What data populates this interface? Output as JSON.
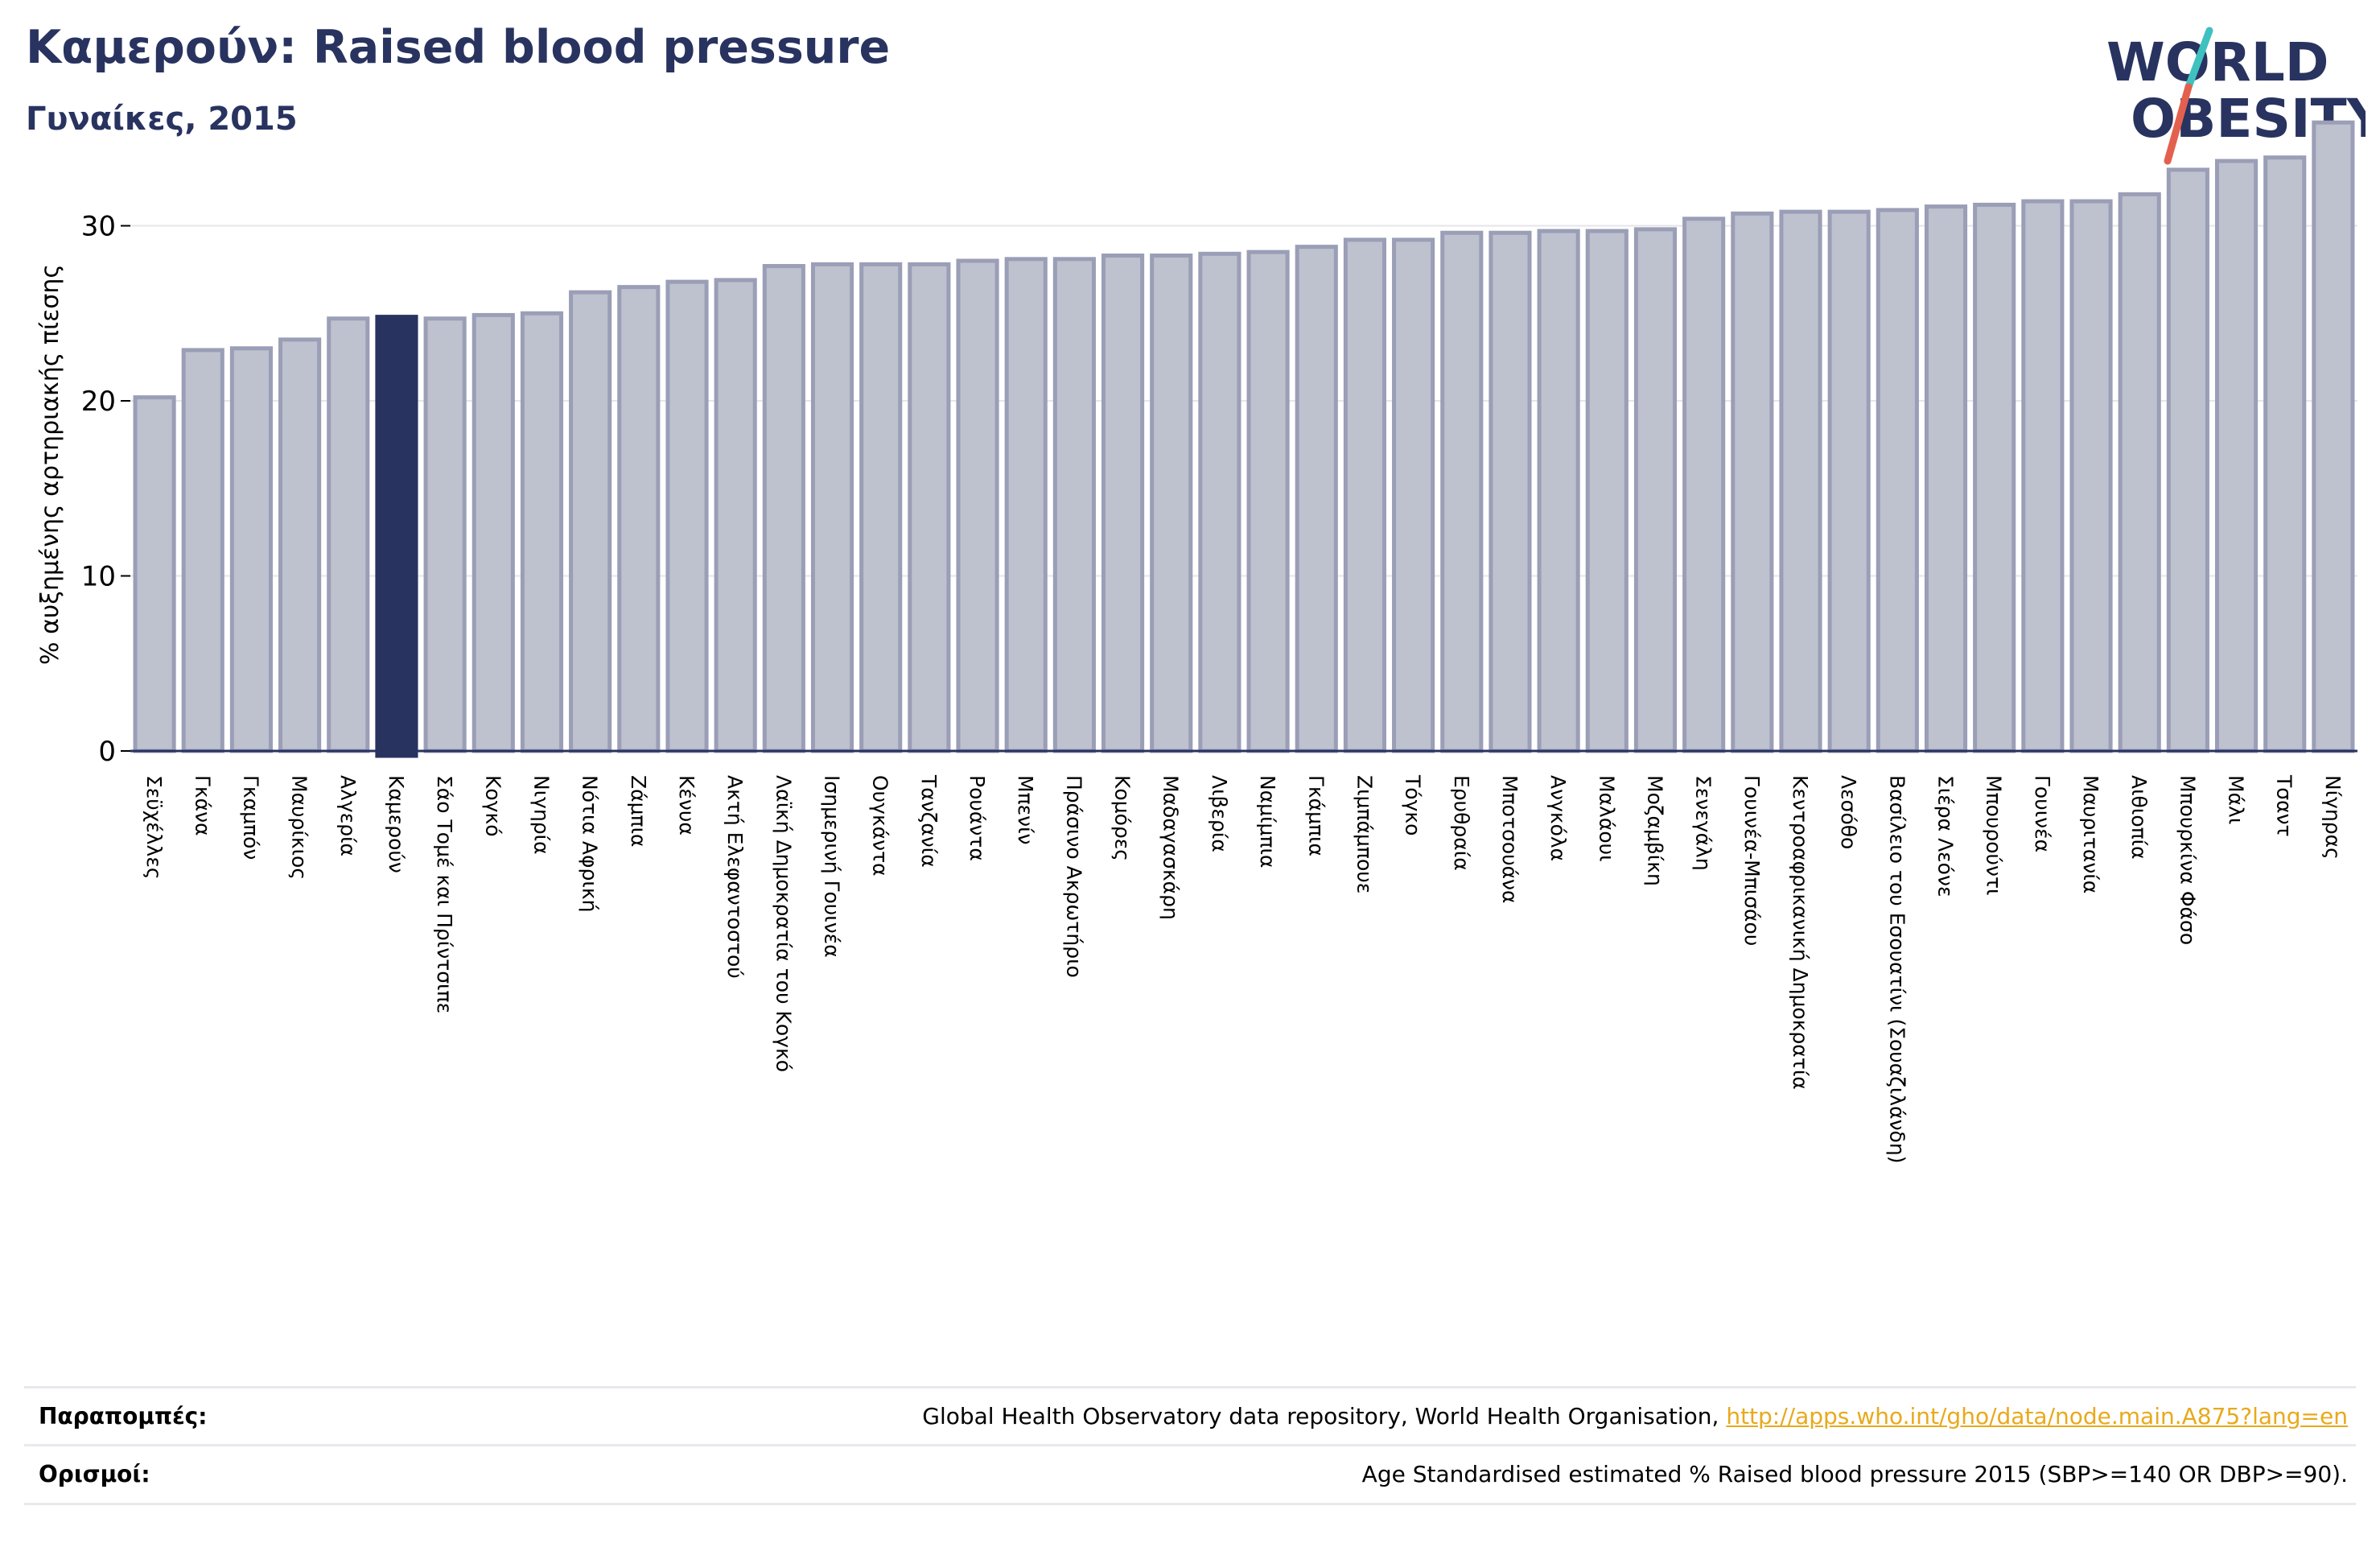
{
  "header": {
    "title": "Καμερούν: Raised blood pressure",
    "subtitle": "Γυναίκες, 2015"
  },
  "logo": {
    "line1": "WORLD",
    "line2": "OBESITY"
  },
  "colors": {
    "bar_fill": "#bec1ce",
    "bar_stroke": "#9a9eb6",
    "highlight_fill": "#283360",
    "text": "#283360",
    "grid": "#e6e6ea",
    "axis": "#283360",
    "link": "#e8a91c",
    "logo_teal": "#3fc1c0",
    "logo_red": "#e4604e"
  },
  "chart_data": {
    "type": "bar",
    "ylabel": "% αυξημένης αρτηριακής πίεσης",
    "ylim": [
      0,
      36
    ],
    "yticks": [
      0,
      10,
      20,
      30
    ],
    "grid": true,
    "highlight": "Καμερούν",
    "categories": [
      "Σεϋχέλλες",
      "Γκάνα",
      "Γκαμπόν",
      "Μαυρίκιος",
      "Αλγερία",
      "Καμερούν",
      "Σάο Τομέ και Πρίντσιπε",
      "Κογκό",
      "Νιγηρία",
      "Νότια Αφρική",
      "Ζάμπια",
      "Κένυα",
      "Ακτή Ελεφαντοστού",
      "Λαϊκή Δημοκρατία του Κογκό",
      "Ισημερινή Γουινέα",
      "Ουγκάντα",
      "Τανζανία",
      "Ρουάντα",
      "Μπενίν",
      "Πράσινο Ακρωτήριο",
      "Κομόρες",
      "Μαδαγασκάρη",
      "Λιβερία",
      "Ναμίμπια",
      "Γκάμπια",
      "Ζιμπάμπουε",
      "Τόγκο",
      "Ερυθραία",
      "Μποτσουάνα",
      "Ανγκόλα",
      "Μαλάουι",
      "Μοζαμβίκη",
      "Σενεγάλη",
      "Γουινέα-Μπισάου",
      "Κεντροαφρικανική Δημοκρατία",
      "Λεσόθο",
      "Βασίλειο του Εσουατίνι (Σουαζιλάνδη)",
      "Σιέρα Λεόνε",
      "Μπουρούντι",
      "Γουινέα",
      "Μαυριτανία",
      "Αιθιοπία",
      "Μπουρκίνα Φάσο",
      "Μάλι",
      "Τσαντ",
      "Νίγηρας"
    ],
    "values": [
      20.2,
      22.9,
      23.0,
      23.5,
      24.7,
      24.8,
      24.7,
      24.9,
      25.0,
      26.2,
      26.5,
      26.8,
      26.9,
      27.7,
      27.8,
      27.8,
      27.8,
      28.0,
      28.1,
      28.1,
      28.3,
      28.3,
      28.4,
      28.5,
      28.8,
      29.2,
      29.2,
      29.6,
      29.6,
      29.7,
      29.7,
      29.8,
      30.4,
      30.7,
      30.8,
      30.8,
      30.9,
      31.1,
      31.2,
      31.4,
      31.4,
      31.8,
      33.2,
      33.7,
      33.9,
      35.9
    ]
  },
  "footer": {
    "refs_label": "Παραπομπές:",
    "refs_text": "Global Health Observatory data repository, World Health Organisation, ",
    "refs_link": "http://apps.who.int/gho/data/node.main.A875?lang=en",
    "defs_label": "Ορισμοί:",
    "defs_text": "Age Standardised estimated % Raised blood pressure 2015 (SBP>=140 OR DBP>=90)."
  }
}
